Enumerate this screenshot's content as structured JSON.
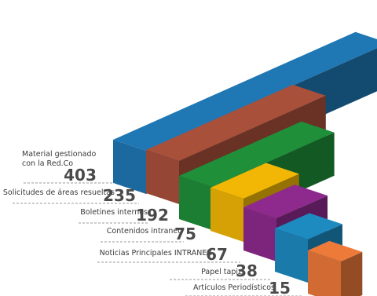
{
  "chart_data": {
    "type": "bar",
    "categories": [
      [
        "Material gestionado",
        "con la Red.Co"
      ],
      [
        "Solicitudes de áreas resueltas"
      ],
      [
        "Boletines internos"
      ],
      [
        "Contenidos intranet"
      ],
      [
        "Noticias Principales INTRANER"
      ],
      [
        "Papel tapiz"
      ],
      [
        "Artículos Periodísticos"
      ]
    ],
    "values": [
      403,
      235,
      192,
      75,
      67,
      38,
      15
    ],
    "colors": [
      "#1f77b4",
      "#a9503b",
      "#1f8f3a",
      "#f2b705",
      "#8e2a8e",
      "#1d8bc0",
      "#ee7a3a"
    ],
    "title": "",
    "xlabel": "",
    "ylabel": ""
  }
}
